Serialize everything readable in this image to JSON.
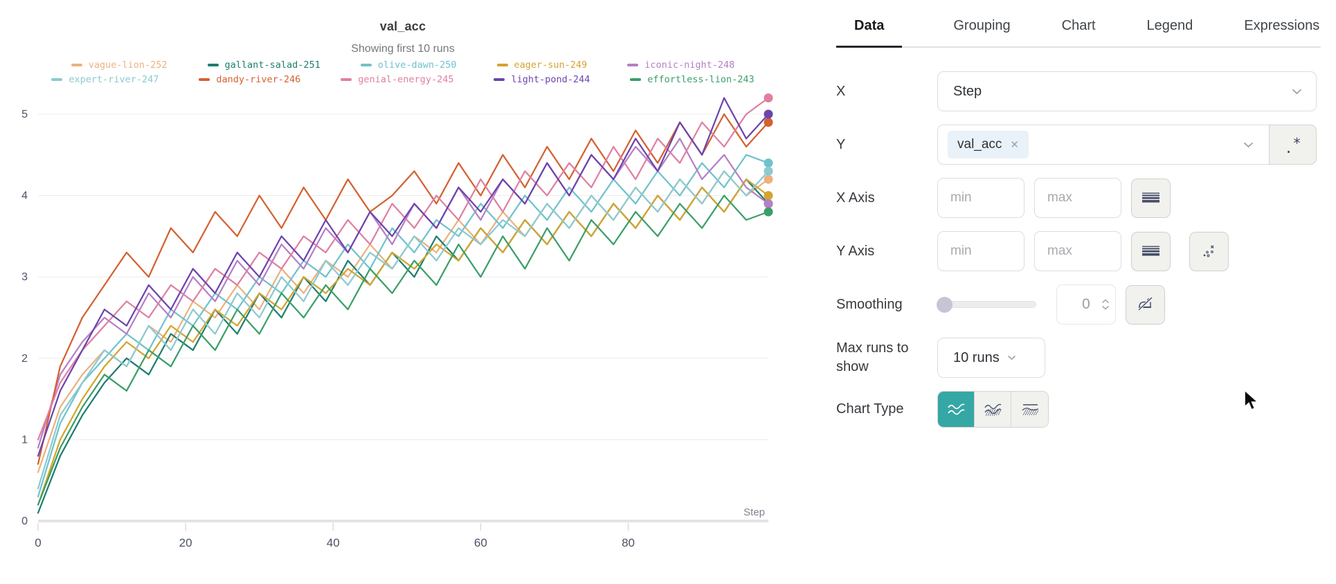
{
  "chart": {
    "title": "val_acc",
    "subtitle": "Showing first 10 runs",
    "xlabel": "Step"
  },
  "chart_data": {
    "type": "line",
    "title": "val_acc",
    "subtitle": "Showing first 10 runs",
    "xlabel": "Step",
    "ylabel": "",
    "xlim": [
      0,
      99
    ],
    "ylim": [
      0,
      5
    ],
    "x_ticks": [
      0,
      20,
      40,
      60,
      80
    ],
    "y_ticks": [
      0,
      1,
      2,
      3,
      4,
      5
    ],
    "grid": "horizontal",
    "legend_position": "top",
    "x": [
      0,
      3,
      6,
      9,
      12,
      15,
      18,
      21,
      24,
      27,
      30,
      33,
      36,
      39,
      42,
      45,
      48,
      51,
      54,
      57,
      60,
      63,
      66,
      69,
      72,
      75,
      78,
      81,
      84,
      87,
      90,
      93,
      96,
      99
    ],
    "series": [
      {
        "name": "vague-lion-252",
        "color": "#ecb17e",
        "values": [
          0.6,
          1.4,
          1.8,
          2.1,
          1.9,
          2.4,
          2.2,
          2.7,
          2.5,
          2.9,
          2.6,
          3.1,
          2.8,
          3.2,
          3.0,
          3.4,
          3.1,
          3.5,
          3.3,
          3.7,
          3.4,
          3.8,
          3.5,
          3.9,
          3.6,
          4.0,
          3.7,
          4.1,
          3.8,
          4.2,
          3.9,
          4.3,
          4.0,
          4.2
        ]
      },
      {
        "name": "gallant-salad-251",
        "color": "#1e7d6e",
        "values": [
          0.1,
          0.8,
          1.3,
          1.7,
          2.0,
          1.8,
          2.3,
          2.1,
          2.6,
          2.3,
          2.8,
          2.5,
          3.0,
          2.7,
          3.2,
          2.9,
          3.3,
          3.0,
          3.5,
          3.2,
          3.6,
          3.3,
          3.7,
          3.4,
          3.8,
          3.5,
          3.9,
          3.6,
          4.0,
          3.7,
          4.1,
          3.8,
          4.2,
          3.9
        ]
      },
      {
        "name": "olive-dawn-250",
        "color": "#6fc2cc",
        "values": [
          0.3,
          1.2,
          1.7,
          2.0,
          2.3,
          2.1,
          2.6,
          2.4,
          2.8,
          2.6,
          3.0,
          2.8,
          3.2,
          3.0,
          3.4,
          3.1,
          3.6,
          3.3,
          3.7,
          3.5,
          3.9,
          3.6,
          4.0,
          3.7,
          4.1,
          3.8,
          4.2,
          3.9,
          4.3,
          4.0,
          4.4,
          4.1,
          4.5,
          4.4
        ]
      },
      {
        "name": "eager-sun-249",
        "color": "#d4a42e",
        "values": [
          0.2,
          1.0,
          1.5,
          1.9,
          2.2,
          2.0,
          2.4,
          2.2,
          2.6,
          2.4,
          2.8,
          2.6,
          3.0,
          2.8,
          3.1,
          2.9,
          3.3,
          3.1,
          3.4,
          3.2,
          3.6,
          3.3,
          3.7,
          3.4,
          3.8,
          3.5,
          3.9,
          3.6,
          4.0,
          3.7,
          4.1,
          3.8,
          4.2,
          4.0
        ]
      },
      {
        "name": "iconic-night-248",
        "color": "#b57fc5",
        "values": [
          0.9,
          1.8,
          2.2,
          2.5,
          2.3,
          2.8,
          2.5,
          3.0,
          2.7,
          3.2,
          2.9,
          3.4,
          3.1,
          3.6,
          3.3,
          3.8,
          3.4,
          3.9,
          3.6,
          4.1,
          3.7,
          4.2,
          3.9,
          4.4,
          4.0,
          4.5,
          4.2,
          4.6,
          4.3,
          4.7,
          4.2,
          4.5,
          4.1,
          3.9
        ]
      },
      {
        "name": "expert-river-247",
        "color": "#8bcad0",
        "values": [
          0.4,
          1.3,
          1.7,
          2.1,
          1.9,
          2.4,
          2.1,
          2.6,
          2.3,
          2.8,
          2.5,
          3.0,
          2.7,
          3.2,
          2.9,
          3.3,
          3.1,
          3.5,
          3.2,
          3.6,
          3.4,
          3.7,
          3.5,
          3.9,
          3.6,
          4.0,
          3.7,
          4.1,
          3.8,
          4.2,
          3.9,
          4.3,
          4.0,
          4.3
        ]
      },
      {
        "name": "dandy-river-246",
        "color": "#d4612f",
        "values": [
          0.7,
          1.9,
          2.5,
          2.9,
          3.3,
          3.0,
          3.6,
          3.3,
          3.8,
          3.5,
          4.0,
          3.6,
          4.1,
          3.7,
          4.2,
          3.8,
          4.0,
          4.3,
          3.9,
          4.4,
          4.0,
          4.5,
          4.1,
          4.6,
          4.2,
          4.7,
          4.3,
          4.8,
          4.4,
          4.9,
          4.5,
          5.0,
          4.6,
          4.9
        ]
      },
      {
        "name": "genial-energy-245",
        "color": "#df7fa2",
        "values": [
          1.0,
          1.7,
          2.1,
          2.4,
          2.7,
          2.5,
          2.9,
          2.7,
          3.1,
          2.9,
          3.3,
          3.1,
          3.5,
          3.3,
          3.7,
          3.4,
          3.9,
          3.6,
          4.0,
          3.7,
          4.2,
          3.8,
          4.3,
          4.0,
          4.4,
          4.1,
          4.6,
          4.2,
          4.7,
          4.4,
          4.9,
          4.6,
          5.0,
          5.2
        ]
      },
      {
        "name": "light-pond-244",
        "color": "#6c44ad",
        "values": [
          0.8,
          1.6,
          2.1,
          2.6,
          2.4,
          2.9,
          2.6,
          3.1,
          2.8,
          3.3,
          3.0,
          3.5,
          3.2,
          3.7,
          3.3,
          3.8,
          3.5,
          3.9,
          3.6,
          4.1,
          3.8,
          4.2,
          3.9,
          4.4,
          4.0,
          4.5,
          4.2,
          4.7,
          4.3,
          4.9,
          4.5,
          5.2,
          4.7,
          5.0
        ]
      },
      {
        "name": "effortless-lion-243",
        "color": "#3b9e68",
        "values": [
          0.2,
          0.9,
          1.4,
          1.8,
          1.6,
          2.1,
          1.9,
          2.4,
          2.1,
          2.6,
          2.3,
          2.8,
          2.5,
          2.9,
          2.6,
          3.1,
          2.8,
          3.2,
          2.9,
          3.4,
          3.0,
          3.5,
          3.1,
          3.6,
          3.2,
          3.7,
          3.4,
          3.8,
          3.5,
          3.9,
          3.6,
          4.0,
          3.7,
          3.8
        ]
      }
    ]
  },
  "panel": {
    "tabs": [
      {
        "label": "Data",
        "active": true
      },
      {
        "label": "Grouping",
        "active": false
      },
      {
        "label": "Chart",
        "active": false
      },
      {
        "label": "Legend",
        "active": false
      },
      {
        "label": "Expressions",
        "active": false
      }
    ],
    "rows": {
      "x": {
        "label": "X",
        "value": "Step"
      },
      "y": {
        "label": "Y",
        "chip": "val_acc",
        "regex_dot": ".",
        "regex_star": "*"
      },
      "x_axis": {
        "label": "X Axis",
        "min_placeholder": "min",
        "max_placeholder": "max"
      },
      "y_axis": {
        "label": "Y Axis",
        "min_placeholder": "min",
        "max_placeholder": "max"
      },
      "smoothing": {
        "label": "Smoothing",
        "value": "0"
      },
      "max_runs": {
        "label": "Max runs to show",
        "value": "10 runs"
      },
      "chart_type": {
        "label": "Chart Type"
      }
    }
  },
  "colors": {
    "accent_teal": "#35a7a4",
    "icon_navy": "#464e68",
    "grid": "#ececec",
    "axis_line": "#e3e3e3",
    "tick_label": "#4b5263",
    "step_label": "#7d8492"
  }
}
